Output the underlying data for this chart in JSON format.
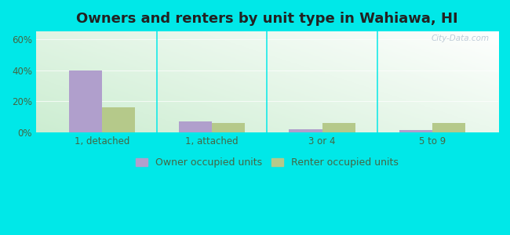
{
  "title": "Owners and renters by unit type in Wahiawa, HI",
  "categories": [
    "1, detached",
    "1, attached",
    "3 or 4",
    "5 to 9"
  ],
  "owner_values": [
    40,
    7,
    2,
    1.5
  ],
  "renter_values": [
    16,
    6,
    6,
    6
  ],
  "owner_color": "#b09fcc",
  "renter_color": "#b5c98a",
  "background_color": "#00e8e8",
  "title_fontsize": 13,
  "tick_fontsize": 8.5,
  "legend_fontsize": 9,
  "ylim": [
    0,
    65
  ],
  "yticks": [
    0,
    20,
    40,
    60
  ],
  "ytick_labels": [
    "0%",
    "20%",
    "40%",
    "60%"
  ],
  "bar_width": 0.3,
  "watermark": "City-Data.com",
  "plot_left_color": "#c8e8c0",
  "plot_right_color": "#e8f8f0"
}
